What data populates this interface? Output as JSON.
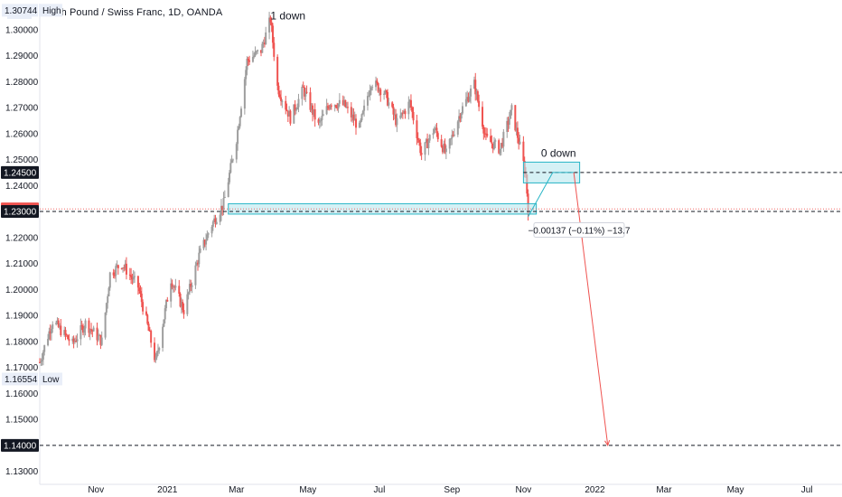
{
  "header": {
    "currency": "CHF",
    "title": "British Pound / Swiss Franc, 1D, OANDA"
  },
  "chart_data": {
    "type": "candlestick",
    "title": "British Pound / Swiss Franc, 1D, OANDA",
    "y_ticks": [
      "1.30000",
      "1.29000",
      "1.28000",
      "1.27000",
      "1.26000",
      "1.25000",
      "1.24000",
      "1.22000",
      "1.21000",
      "1.20000",
      "1.19000",
      "1.18000",
      "1.17000",
      "1.16000",
      "1.15000",
      "1.13000"
    ],
    "x_ticks": [
      "Nov",
      "2021",
      "Mar",
      "May",
      "Jul",
      "Sep",
      "Nov",
      "2022",
      "Mar",
      "May",
      "Jul"
    ],
    "high": {
      "value": "1.30744",
      "label": "High"
    },
    "low": {
      "value": "1.16554",
      "label": "Low"
    },
    "price_badges": [
      {
        "value": "1.24500",
        "style": "dark"
      },
      {
        "value": "1.23100",
        "style": "red"
      },
      {
        "value": "1.23000",
        "style": "dark"
      },
      {
        "value": "1.14000",
        "style": "dark"
      }
    ],
    "horizontal_levels": [
      1.245,
      1.23,
      1.14
    ],
    "current_price": 1.231,
    "zones": [
      {
        "from": "2021-02-22",
        "to": "2021-11-12",
        "top": 1.233,
        "bottom": 1.229
      },
      {
        "from": "2021-11-01",
        "to": "2021-12-19",
        "top": 1.249,
        "bottom": 1.241
      }
    ],
    "annotations": [
      {
        "text": "1 down",
        "date": "2021-03-30",
        "price": 1.304
      },
      {
        "text": "0 down",
        "date": "2021-11-16",
        "price": 1.251
      }
    ],
    "measure_label": "−0.00137 (−0.11%) −13.7",
    "projection_line": {
      "from_date": "2021-12-14",
      "from_price": 1.245,
      "to_date": "2022-01-12",
      "to_price": 1.14
    },
    "path_points": [
      {
        "date": "2021-11-05",
        "price": 1.228
      },
      {
        "date": "2021-11-26",
        "price": 1.245
      },
      {
        "date": "2021-12-14",
        "price": 1.245
      }
    ],
    "price_anchors": [
      [
        "2020-09-14",
        1.172
      ],
      [
        "2020-09-25",
        1.188
      ],
      [
        "2020-10-12",
        1.179
      ],
      [
        "2020-10-23",
        1.187
      ],
      [
        "2020-11-06",
        1.18
      ],
      [
        "2020-11-13",
        1.206
      ],
      [
        "2020-11-23",
        1.21
      ],
      [
        "2020-12-07",
        1.201
      ],
      [
        "2020-12-14",
        1.188
      ],
      [
        "2020-12-22",
        1.172
      ],
      [
        "2021-01-04",
        1.204
      ],
      [
        "2021-01-15",
        1.192
      ],
      [
        "2021-01-28",
        1.213
      ],
      [
        "2021-02-08",
        1.225
      ],
      [
        "2021-02-18",
        1.233
      ],
      [
        "2021-03-01",
        1.258
      ],
      [
        "2021-03-10",
        1.288
      ],
      [
        "2021-03-22",
        1.292
      ],
      [
        "2021-03-30",
        1.304
      ],
      [
        "2021-04-05",
        1.278
      ],
      [
        "2021-04-16",
        1.266
      ],
      [
        "2021-04-27",
        1.277
      ],
      [
        "2021-05-10",
        1.263
      ],
      [
        "2021-05-20",
        1.272
      ],
      [
        "2021-06-01",
        1.271
      ],
      [
        "2021-06-14",
        1.262
      ],
      [
        "2021-06-24",
        1.28
      ],
      [
        "2021-07-05",
        1.276
      ],
      [
        "2021-07-16",
        1.264
      ],
      [
        "2021-07-27",
        1.272
      ],
      [
        "2021-08-06",
        1.252
      ],
      [
        "2021-08-17",
        1.262
      ],
      [
        "2021-08-27",
        1.252
      ],
      [
        "2021-09-08",
        1.268
      ],
      [
        "2021-09-20",
        1.279
      ],
      [
        "2021-09-30",
        1.258
      ],
      [
        "2021-10-12",
        1.254
      ],
      [
        "2021-10-22",
        1.269
      ],
      [
        "2021-10-29",
        1.255
      ],
      [
        "2021-11-03",
        1.244
      ],
      [
        "2021-11-05",
        1.231
      ]
    ],
    "x_range": [
      "2020-09-14",
      "2022-07-31"
    ],
    "y_range": [
      1.125,
      1.31
    ],
    "colors": {
      "up": "#9e9e9e",
      "down": "#ef5350",
      "zone_fill": "#b9e7ef",
      "zone_stroke": "#28b5c6",
      "projection": "#ef5350"
    }
  }
}
